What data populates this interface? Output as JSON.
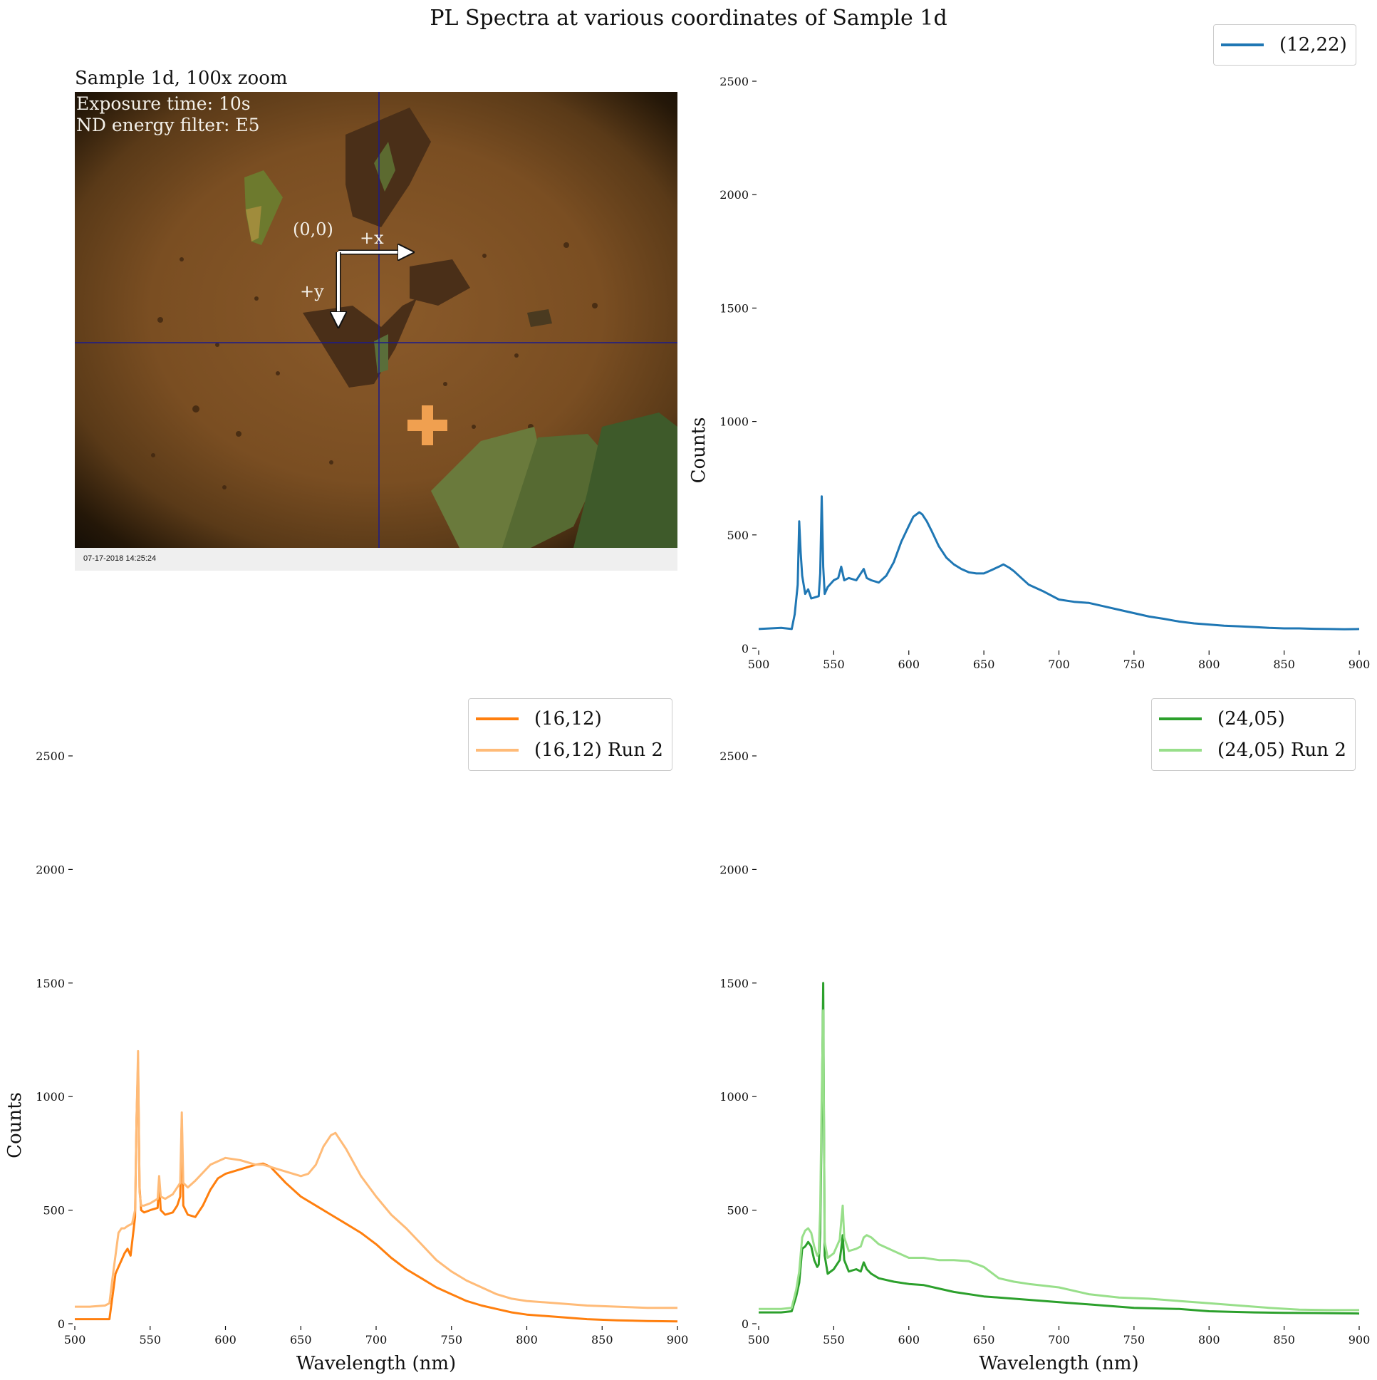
{
  "figure_title": "PL Spectra at various coordinates of Sample 1d",
  "micrograph": {
    "title": "Sample 1d, 100x zoom",
    "exposure": "Exposure time: 10s",
    "filter": "ND energy filter: E5",
    "origin_label": "(0,0)",
    "x_axis_label": "+x",
    "y_axis_label": "+y",
    "timestamp": "07-17-2018 14:25:24"
  },
  "colors": {
    "blue": "#1f77b4",
    "orange": "#ff7f0e",
    "light_orange": "#ffbb78",
    "green": "#2ca02c",
    "light_green": "#98df8a"
  },
  "chart_data": [
    {
      "type": "line",
      "panel": "top-right",
      "xlabel": "",
      "ylabel": "Counts",
      "xlim": [
        500,
        900
      ],
      "ylim": [
        0,
        2500
      ],
      "xticks": [
        500,
        550,
        600,
        650,
        700,
        750,
        800,
        850,
        900
      ],
      "yticks": [
        0,
        500,
        1000,
        1500,
        2000,
        2500
      ],
      "legend": "top-right",
      "grid": false,
      "series": [
        {
          "name": "(12,22)",
          "color": "#1f77b4",
          "x": [
            500,
            515,
            522,
            524,
            526,
            527,
            528,
            529,
            531,
            533,
            535,
            540,
            541,
            542,
            543,
            544,
            546,
            550,
            553,
            555,
            556,
            557,
            560,
            565,
            568,
            570,
            572,
            575,
            580,
            585,
            590,
            595,
            600,
            603,
            607,
            609,
            610,
            612,
            615,
            620,
            625,
            630,
            635,
            640,
            645,
            650,
            655,
            660,
            663,
            667,
            670,
            675,
            680,
            690,
            700,
            710,
            720,
            730,
            740,
            750,
            760,
            770,
            780,
            790,
            800,
            810,
            820,
            830,
            840,
            850,
            860,
            870,
            880,
            890,
            900
          ],
          "y": [
            85,
            90,
            85,
            150,
            280,
            560,
            420,
            320,
            240,
            260,
            220,
            230,
            330,
            670,
            360,
            240,
            270,
            300,
            310,
            360,
            330,
            300,
            310,
            300,
            330,
            350,
            310,
            300,
            290,
            320,
            380,
            470,
            540,
            580,
            600,
            590,
            580,
            560,
            520,
            450,
            400,
            370,
            350,
            335,
            330,
            330,
            345,
            360,
            370,
            355,
            340,
            310,
            280,
            250,
            215,
            205,
            200,
            185,
            170,
            155,
            140,
            130,
            118,
            110,
            105,
            100,
            97,
            94,
            90,
            88,
            88,
            86,
            85,
            84,
            85
          ]
        }
      ]
    },
    {
      "type": "line",
      "panel": "bottom-left",
      "xlabel": "Wavelength (nm)",
      "ylabel": "Counts",
      "xlim": [
        500,
        900
      ],
      "ylim": [
        0,
        2500
      ],
      "xticks": [
        500,
        550,
        600,
        650,
        700,
        750,
        800,
        850,
        900
      ],
      "yticks": [
        0,
        500,
        1000,
        1500,
        2000,
        2500
      ],
      "legend": "top-right",
      "grid": false,
      "series": [
        {
          "name": "(16,12)",
          "color": "#ff7f0e",
          "x": [
            500,
            510,
            523,
            525,
            527,
            529,
            531,
            533,
            535,
            537,
            540,
            541,
            542,
            543,
            544,
            546,
            550,
            555,
            556,
            557,
            560,
            565,
            568,
            570,
            571,
            572,
            575,
            580,
            585,
            590,
            595,
            600,
            610,
            620,
            625,
            630,
            640,
            650,
            660,
            670,
            680,
            690,
            700,
            710,
            720,
            730,
            740,
            750,
            760,
            770,
            780,
            790,
            800,
            820,
            840,
            860,
            880,
            900
          ],
          "y": [
            20,
            20,
            20,
            120,
            220,
            250,
            280,
            310,
            330,
            300,
            470,
            900,
            1150,
            600,
            500,
            490,
            500,
            510,
            620,
            500,
            480,
            490,
            520,
            560,
            900,
            520,
            480,
            470,
            520,
            590,
            640,
            660,
            680,
            700,
            705,
            690,
            620,
            560,
            520,
            480,
            440,
            400,
            350,
            290,
            240,
            200,
            160,
            130,
            100,
            80,
            65,
            50,
            40,
            30,
            20,
            15,
            12,
            10
          ]
        },
        {
          "name": "(16,12) Run 2",
          "color": "#ffbb78",
          "x": [
            500,
            510,
            520,
            523,
            525,
            527,
            529,
            531,
            533,
            535,
            538,
            540,
            541,
            542,
            543,
            544,
            546,
            550,
            555,
            556,
            557,
            560,
            565,
            568,
            570,
            571,
            572,
            575,
            580,
            590,
            600,
            610,
            620,
            625,
            630,
            640,
            650,
            655,
            660,
            665,
            670,
            673,
            675,
            680,
            690,
            700,
            710,
            720,
            730,
            740,
            750,
            760,
            770,
            780,
            790,
            800,
            820,
            840,
            860,
            880,
            900
          ],
          "y": [
            75,
            75,
            80,
            90,
            200,
            300,
            400,
            420,
            420,
            430,
            440,
            500,
            900,
            1200,
            580,
            520,
            520,
            530,
            550,
            650,
            560,
            550,
            570,
            600,
            620,
            930,
            620,
            600,
            630,
            700,
            730,
            720,
            700,
            700,
            690,
            670,
            650,
            660,
            700,
            780,
            830,
            840,
            820,
            770,
            650,
            560,
            480,
            420,
            350,
            280,
            230,
            190,
            160,
            130,
            110,
            100,
            90,
            80,
            75,
            70,
            70
          ]
        }
      ]
    },
    {
      "type": "line",
      "panel": "bottom-right",
      "xlabel": "Wavelength (nm)",
      "ylabel": "",
      "xlim": [
        500,
        900
      ],
      "ylim": [
        0,
        2500
      ],
      "xticks": [
        500,
        550,
        600,
        650,
        700,
        750,
        800,
        850,
        900
      ],
      "yticks": [
        0,
        500,
        1000,
        1500,
        2000,
        2500
      ],
      "legend": "top-right",
      "grid": false,
      "series": [
        {
          "name": "(24,05)",
          "color": "#2ca02c",
          "x": [
            500,
            515,
            522,
            525,
            527,
            529,
            531,
            533,
            535,
            537,
            539,
            540,
            541,
            542,
            543,
            544,
            546,
            550,
            554,
            555,
            556,
            557,
            560,
            565,
            568,
            570,
            572,
            575,
            580,
            590,
            600,
            610,
            620,
            630,
            650,
            680,
            700,
            720,
            750,
            780,
            800,
            830,
            850,
            870,
            900
          ],
          "y": [
            50,
            50,
            55,
            120,
            180,
            330,
            340,
            360,
            340,
            280,
            250,
            260,
            400,
            900,
            1500,
            300,
            220,
            240,
            280,
            330,
            390,
            280,
            230,
            240,
            230,
            270,
            240,
            220,
            200,
            185,
            175,
            170,
            155,
            140,
            120,
            105,
            95,
            85,
            70,
            65,
            55,
            50,
            48,
            47,
            45
          ]
        },
        {
          "name": "(24,05) Run 2",
          "color": "#98df8a",
          "x": [
            500,
            515,
            522,
            525,
            527,
            529,
            531,
            533,
            535,
            537,
            539,
            540,
            541,
            542,
            543,
            544,
            546,
            550,
            554,
            555,
            556,
            557,
            560,
            565,
            568,
            570,
            572,
            575,
            580,
            590,
            600,
            610,
            620,
            630,
            640,
            650,
            660,
            670,
            680,
            700,
            720,
            740,
            760,
            780,
            800,
            820,
            840,
            860,
            880,
            900
          ],
          "y": [
            65,
            65,
            70,
            150,
            230,
            380,
            410,
            420,
            400,
            340,
            300,
            310,
            500,
            1000,
            1380,
            360,
            290,
            310,
            370,
            450,
            520,
            380,
            320,
            330,
            340,
            380,
            390,
            380,
            350,
            320,
            290,
            290,
            280,
            280,
            275,
            250,
            200,
            185,
            175,
            160,
            130,
            115,
            110,
            100,
            90,
            80,
            70,
            62,
            60,
            60
          ]
        }
      ]
    }
  ]
}
